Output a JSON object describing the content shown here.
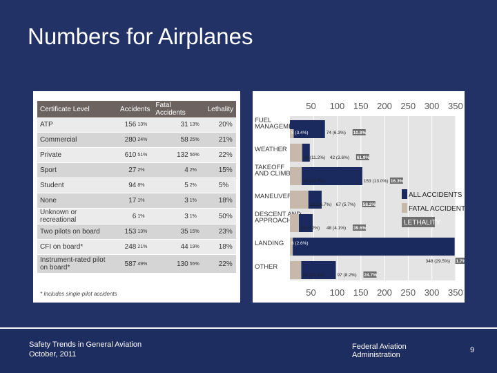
{
  "slide": {
    "title": "Numbers for Airplanes"
  },
  "table": {
    "headers": [
      "Certificate Level",
      "Accidents",
      "Fatal Accidents",
      "Lethality"
    ],
    "rows": [
      {
        "level": "ATP",
        "acc": "156",
        "acc_pct": "13%",
        "fatal": "31",
        "fatal_pct": "13%",
        "lethality": "20%"
      },
      {
        "level": "Commercial",
        "acc": "280",
        "acc_pct": "24%",
        "fatal": "58",
        "fatal_pct": "25%",
        "lethality": "21%"
      },
      {
        "level": "Private",
        "acc": "610",
        "acc_pct": "51%",
        "fatal": "132",
        "fatal_pct": "56%",
        "lethality": "22%"
      },
      {
        "level": "Sport",
        "acc": "27",
        "acc_pct": "2%",
        "fatal": "4",
        "fatal_pct": "2%",
        "lethality": "15%"
      },
      {
        "level": "Student",
        "acc": "94",
        "acc_pct": "8%",
        "fatal": "5",
        "fatal_pct": "2%",
        "lethality": "5%"
      },
      {
        "level": "None",
        "acc": "17",
        "acc_pct": "1%",
        "fatal": "3",
        "fatal_pct": "1%",
        "lethality": "18%"
      },
      {
        "level": "Unknown or recreational",
        "acc": "6",
        "acc_pct": "1%",
        "fatal": "3",
        "fatal_pct": "1%",
        "lethality": "50%"
      },
      {
        "level": "Two pilots on board",
        "acc": "153",
        "acc_pct": "13%",
        "fatal": "35",
        "fatal_pct": "15%",
        "lethality": "23%"
      },
      {
        "level": "CFI on board*",
        "acc": "248",
        "acc_pct": "21%",
        "fatal": "44",
        "fatal_pct": "19%",
        "lethality": "18%"
      },
      {
        "level": "Instrument-rated pilot on board*",
        "acc": "587",
        "acc_pct": "49%",
        "fatal": "130",
        "fatal_pct": "55%",
        "lethality": "22%"
      }
    ],
    "note": "* Includes single-pilot accidents"
  },
  "chart_data": {
    "type": "bar",
    "orientation": "horizontal",
    "xlim": [
      0,
      350
    ],
    "ticks": [
      50,
      100,
      150,
      200,
      250,
      300,
      350
    ],
    "categories": [
      {
        "lines": [
          "FUEL",
          "MANAGEMENT"
        ]
      },
      {
        "lines": [
          "WEATHER"
        ]
      },
      {
        "lines": [
          "TAKEOFF",
          "AND CLIMB"
        ]
      },
      {
        "lines": [
          "MANEUVERING"
        ]
      },
      {
        "lines": [
          "DESCENT AND",
          "APPROACH"
        ]
      },
      {
        "lines": [
          "LANDING"
        ]
      },
      {
        "lines": [
          "OTHER"
        ]
      }
    ],
    "series": [
      {
        "name": "ALL ACCIDENTS",
        "values": [
          74,
          42,
          153,
          67,
          48,
          348,
          97
        ],
        "labels": [
          "74 (6.3%)",
          "42 (3.6%)",
          "153 (13.0%)",
          "67 (5.7%)",
          "48 (4.1%)",
          "348 (29.5%)",
          "97 (8.2%)"
        ]
      },
      {
        "name": "FATAL ACCIDENTS",
        "values": [
          8,
          26,
          25,
          39,
          19,
          6,
          24
        ],
        "labels": [
          "8 (3.4%)",
          "26 (11.2%)",
          "25 (10.7%)",
          "39 (16.7%)",
          "19 (8.2%)",
          "6 (2.6%)",
          "24 (10.3%)"
        ]
      }
    ],
    "lethality": {
      "name": "LETHALITY",
      "values": [
        "10.8%",
        "61.9%",
        "16.3%",
        "58.2%",
        "39.6%",
        "1.7%",
        "24.7%"
      ]
    },
    "colors": {
      "all": "#1a2a5e",
      "fatal": "#c6b9ab",
      "lethality": "#6e6e6e"
    },
    "legend_position": "right"
  },
  "footer": {
    "left_line1": "Safety Trends in General Aviation",
    "left_line2": "October, 2011",
    "mid_line1": "Federal Aviation",
    "mid_line2": "Administration",
    "page": "9"
  }
}
